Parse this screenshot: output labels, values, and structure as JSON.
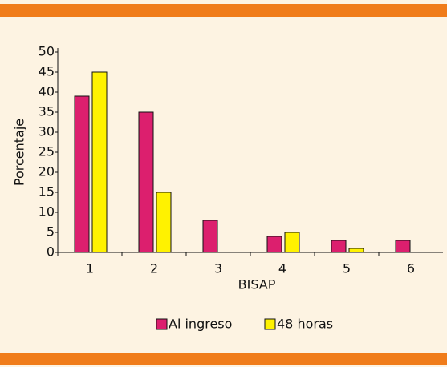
{
  "chart_data": {
    "type": "bar",
    "x_label": "BISAP",
    "y_label": "Porcentaje",
    "categories": [
      "1",
      "2",
      "3",
      "4",
      "5",
      "6"
    ],
    "series": [
      {
        "name": "Al ingreso",
        "color": "#dc1f6e",
        "values": [
          39,
          35,
          8,
          4,
          3,
          3
        ]
      },
      {
        "name": "48 horas",
        "color": "#fff200",
        "values": [
          45,
          15,
          0,
          5,
          1,
          0
        ]
      }
    ],
    "ylim": [
      0,
      50
    ],
    "yticks": [
      0,
      5,
      10,
      15,
      20,
      25,
      30,
      35,
      40,
      45,
      50
    ],
    "legend": "bottom"
  }
}
